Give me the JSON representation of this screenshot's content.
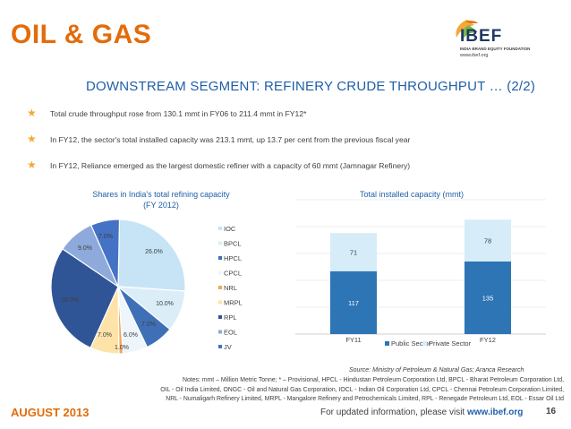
{
  "header": {
    "title": "OIL & GAS",
    "logo_text": "IBEF",
    "logo_sub": "INDIA BRAND EQUITY FOUNDATION",
    "logo_url": "www.ibef.org"
  },
  "subtitle": "DOWNSTREAM SEGMENT: REFINERY CRUDE THROUGHPUT … (2/2)",
  "bullets": [
    "Total crude throughput rose from 130.1 mmt in FY06 to 211.4 mmt in FY12*",
    "In FY12, the sector's total installed capacity was 213.1 mmt, up 13.7 per cent from the previous fiscal year",
    "In FY12, Reliance emerged as the largest domestic refiner with a capacity of 60 mmt (Jamnagar Refinery)"
  ],
  "chart_data": [
    {
      "type": "pie",
      "title": "Shares in India's total refining capacity (FY 2012)",
      "title_lines": [
        "Shares in India's total refining capacity",
        "(FY 2012)"
      ],
      "labels": [
        "IOC",
        "BPCL",
        "HPCL",
        "CPCL",
        "NRL",
        "MRPL",
        "RPL",
        "EOL",
        "JV"
      ],
      "values": [
        26.0,
        10.0,
        7.0,
        6.0,
        1.0,
        7.0,
        28.0,
        9.0,
        7.0
      ],
      "value_labels": [
        "26.0%",
        "10.0%",
        "7.0%",
        "6.0%",
        "1.0%",
        "7.0%",
        "28.0%",
        "9.0%",
        "7.0%"
      ],
      "colors": [
        "#c6e4f5",
        "#dbeef8",
        "#3f6fb7",
        "#eef5fb",
        "#f2a75a",
        "#fde3a7",
        "#2f5597",
        "#8ea9db",
        "#4472c4"
      ],
      "legend_placement": "right"
    },
    {
      "type": "bar",
      "stacked": true,
      "title": "Total installed capacity (mmt)",
      "categories": [
        "FY11",
        "FY12"
      ],
      "series": [
        {
          "name": "Public Sector",
          "values": [
            117,
            135
          ],
          "color": "#2e75b6"
        },
        {
          "name": "Private Sector",
          "values": [
            71,
            78
          ],
          "color": "#d6ecf8"
        }
      ],
      "ylim": [
        0,
        250
      ],
      "grid": true,
      "legend_placement": "bottom"
    }
  ],
  "source": "Source: Ministry of Petroleum & Natural Gas; Aranca Research",
  "notes": [
    "Notes: mmt – Million Metric Tonne; * – Provisional, HPCL - Hindustan Petroleum Corporation Ltd, BPCL - Bharat Petroleum Corporation Ltd,",
    "OIL - Oil India Limited, ONGC - Oil and Natural Gas Corporation, IOCL - Indian Oil Corporation Ltd, CPCL - Chennai Petroleum Corporation Limited,",
    "NRL - Numaligarh Refinery Limited, MRPL - Mangalore Refinery and Petrochemicals Limited, RPL - Renegade Petroleum Ltd, EOL - Essar Oil Ltd"
  ],
  "footer": {
    "date": "AUGUST 2013",
    "text": "For updated information, please visit ",
    "url": "www.ibef.org",
    "page": "16"
  },
  "colors": {
    "accent_orange": "#e36c0a",
    "title_blue": "#1f5fa8"
  }
}
